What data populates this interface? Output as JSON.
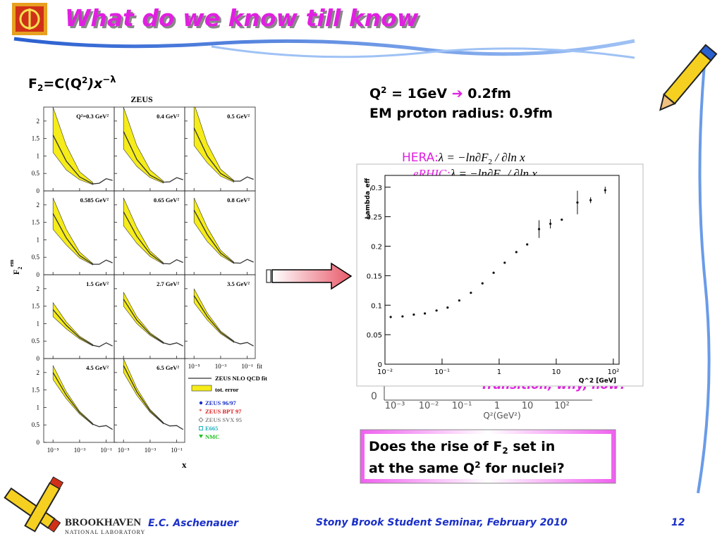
{
  "header": {
    "title": "What do we know till know"
  },
  "formula": {
    "f": "F",
    "sub": "2",
    "mid": "=C(Q",
    "sup": "2",
    "end": ")x",
    "exp": "−λ"
  },
  "scale": {
    "q": "Q",
    "q_sup": "2",
    "eq": " = 1GeV ",
    "arrow": "➔",
    "fm": " 0.2fm",
    "line2": "EM proton radius: 0.9fm"
  },
  "hera": {
    "name": "HERA:",
    "lhs": "λ = −ln∂F",
    "sub": "2",
    "rhs": " / ∂ln x"
  },
  "erhic": {
    "name": "eRHIC:",
    "lhs": "λ = −ln∂F",
    "sub": "2",
    "rhs": " / ∂ln x"
  },
  "zeus": {
    "title": "ZEUS",
    "y_label": {
      "f": "F",
      "sub": "2",
      "sup": "em"
    },
    "x_label": "x",
    "x": [
      1e-05,
      0.0001,
      0.001,
      0.01,
      0.03,
      0.1,
      0.3
    ],
    "xlim": [
      2e-06,
      0.4
    ],
    "ylim": [
      0,
      2.4
    ],
    "log_x": true,
    "xticks": [
      {
        "value": 1e-05,
        "label": "10⁻⁵"
      },
      {
        "value": 0.001,
        "label": "10⁻³"
      },
      {
        "value": 0.1,
        "label": "10⁻¹"
      }
    ],
    "yticks": [
      0,
      0.5,
      1,
      1.5,
      2
    ],
    "curve_color": "#333333",
    "band_color": "#f5ec1a",
    "panels": [
      {
        "label": "Q²=0.3 GeV²",
        "curve": [
          1.6,
          0.85,
          0.4,
          0.2,
          0.22,
          0.35,
          0.3
        ],
        "band_lower": [
          1.1,
          0.6,
          0.32,
          0.18,
          null,
          null,
          null
        ],
        "band_upper": [
          2.4,
          1.3,
          0.55,
          0.24,
          null,
          null,
          null
        ]
      },
      {
        "label": "0.4 GeV²",
        "curve": [
          1.7,
          0.9,
          0.45,
          0.25,
          0.26,
          0.38,
          0.32
        ],
        "band_lower": [
          1.2,
          0.7,
          0.38,
          0.22,
          null,
          null,
          null
        ],
        "band_upper": [
          2.4,
          1.3,
          0.6,
          0.28,
          null,
          null,
          null
        ]
      },
      {
        "label": "0.5 GeV²",
        "curve": [
          1.8,
          1.0,
          0.5,
          0.28,
          0.28,
          0.4,
          0.33
        ],
        "band_lower": [
          1.3,
          0.8,
          0.42,
          0.25,
          null,
          null,
          null
        ],
        "band_upper": [
          2.5,
          1.35,
          0.62,
          0.3,
          null,
          null,
          null
        ]
      },
      {
        "label": "0.585 GeV²",
        "curve": [
          1.75,
          1.05,
          0.55,
          0.3,
          0.3,
          0.42,
          0.34
        ],
        "band_lower": [
          1.3,
          0.85,
          0.48,
          0.28,
          null,
          null,
          null
        ],
        "band_upper": [
          2.2,
          1.3,
          0.65,
          0.32,
          null,
          null,
          null
        ]
      },
      {
        "label": "0.65 GeV²",
        "curve": [
          1.8,
          1.1,
          0.6,
          0.32,
          0.31,
          0.43,
          0.35
        ],
        "band_lower": [
          1.4,
          0.9,
          0.52,
          0.3,
          null,
          null,
          null
        ],
        "band_upper": [
          2.2,
          1.35,
          0.68,
          0.34,
          null,
          null,
          null
        ]
      },
      {
        "label": "0.8 GeV²",
        "curve": [
          1.85,
          1.15,
          0.62,
          0.34,
          0.33,
          0.44,
          0.36
        ],
        "band_lower": [
          1.5,
          0.95,
          0.55,
          0.32,
          null,
          null,
          null
        ],
        "band_upper": [
          2.2,
          1.35,
          0.7,
          0.36,
          null,
          null,
          null
        ]
      },
      {
        "label": "1.5 GeV²",
        "curve": [
          1.4,
          0.95,
          0.6,
          0.38,
          0.34,
          0.45,
          0.36
        ],
        "band_lower": [
          1.2,
          0.85,
          0.56,
          0.36,
          null,
          null,
          null
        ],
        "band_upper": [
          1.6,
          1.05,
          0.64,
          0.4,
          null,
          null,
          null
        ]
      },
      {
        "label": "2.7 GeV²",
        "curve": [
          1.7,
          1.1,
          0.7,
          0.45,
          0.4,
          0.45,
          0.36
        ],
        "band_lower": [
          1.5,
          1.0,
          0.66,
          0.43,
          null,
          null,
          null
        ],
        "band_upper": [
          1.9,
          1.2,
          0.74,
          0.47,
          null,
          null,
          null
        ]
      },
      {
        "label": "3.5 GeV²",
        "curve": [
          1.8,
          1.2,
          0.75,
          0.48,
          0.42,
          0.46,
          0.36
        ],
        "band_lower": [
          1.6,
          1.1,
          0.71,
          0.46,
          null,
          null,
          null
        ],
        "band_upper": [
          2.0,
          1.3,
          0.79,
          0.5,
          null,
          null,
          null
        ]
      },
      {
        "label": "4.5 GeV²",
        "curve": [
          2.0,
          1.35,
          0.85,
          0.52,
          0.45,
          0.48,
          0.37
        ],
        "band_lower": [
          1.8,
          1.25,
          0.81,
          0.5,
          null,
          null,
          null
        ],
        "band_upper": [
          2.2,
          1.45,
          0.89,
          0.54,
          null,
          null,
          null
        ]
      },
      {
        "label": "6.5 GeV²",
        "curve": [
          2.2,
          1.45,
          0.9,
          0.55,
          0.47,
          0.48,
          0.37
        ],
        "band_lower": [
          2.0,
          1.35,
          0.86,
          0.53,
          null,
          null,
          null
        ],
        "band_upper": [
          2.4,
          1.55,
          0.94,
          0.57,
          null,
          null,
          null
        ]
      }
    ],
    "extra_tick": "fit",
    "legend": [
      {
        "name": "ZEUS NLO QCD fit",
        "color": "#333333",
        "marker": "line"
      },
      {
        "name": "tot. error",
        "color": "#f5ec1a",
        "marker": "rect"
      },
      {
        "name": "ZEUS 96/97",
        "color": "#1a2fc8",
        "marker": "dot"
      },
      {
        "name": "ZEUS BPT 97",
        "color": "#e02020",
        "marker": "star"
      },
      {
        "name": "ZEUS SVX 95",
        "color": "#888888",
        "marker": "diamond"
      },
      {
        "name": "E665",
        "color": "#20b0c0",
        "marker": "square"
      },
      {
        "name": "NMC",
        "color": "#20c020",
        "marker": "triangle"
      }
    ]
  },
  "chart_data": {
    "type": "scatter",
    "y_label": "Lambda_eff",
    "x_label": "Q^2 [GeV]",
    "log_x": true,
    "xlim": [
      0.01,
      126
    ],
    "ylim": [
      0,
      0.32
    ],
    "xticks": [
      {
        "value": 0.01,
        "label": "10⁻²"
      },
      {
        "value": 0.1,
        "label": "10⁻¹"
      },
      1,
      10,
      {
        "value": 100,
        "label": "10²"
      }
    ],
    "yticks": [
      0,
      0.05,
      0.1,
      0.15,
      0.2,
      0.25,
      0.3
    ],
    "color": "#111111",
    "x": [
      0.0126,
      0.0203,
      0.032,
      0.05,
      0.08,
      0.125,
      0.2,
      0.32,
      0.51,
      0.8,
      1.25,
      2.0,
      3.1,
      5.0,
      7.9,
      12.5,
      23.5,
      40,
      72
    ],
    "values": [
      0.08,
      0.081,
      0.084,
      0.086,
      0.091,
      0.096,
      0.108,
      0.121,
      0.137,
      0.155,
      0.172,
      0.19,
      0.203,
      0.229,
      0.238,
      0.245,
      0.274,
      0.278,
      0.295
    ],
    "errors": [
      null,
      null,
      null,
      null,
      null,
      null,
      null,
      null,
      null,
      null,
      null,
      null,
      null,
      0.015,
      0.008,
      null,
      0.02,
      0.005,
      0.006
    ]
  },
  "back_chart": {
    "zero": "0",
    "ticks": [
      "10⁻³",
      "10⁻²",
      "10⁻¹",
      "1",
      "10",
      "10²"
    ],
    "x_label": "Q²(GeV²)",
    "note": "Transition, why, how?"
  },
  "question": {
    "a": "Does the rise of F",
    "a_sub": "2",
    "b": " set in",
    "c": "at the same Q",
    "c_sup": "2",
    "d": " for nuclei?"
  },
  "footer": {
    "lab": "BROOKHAVEN",
    "lab_sub": "NATIONAL LABORATORY",
    "author": "E.C. Aschenauer",
    "event": "Stony Brook Student Seminar, February 2010",
    "page": "12"
  }
}
